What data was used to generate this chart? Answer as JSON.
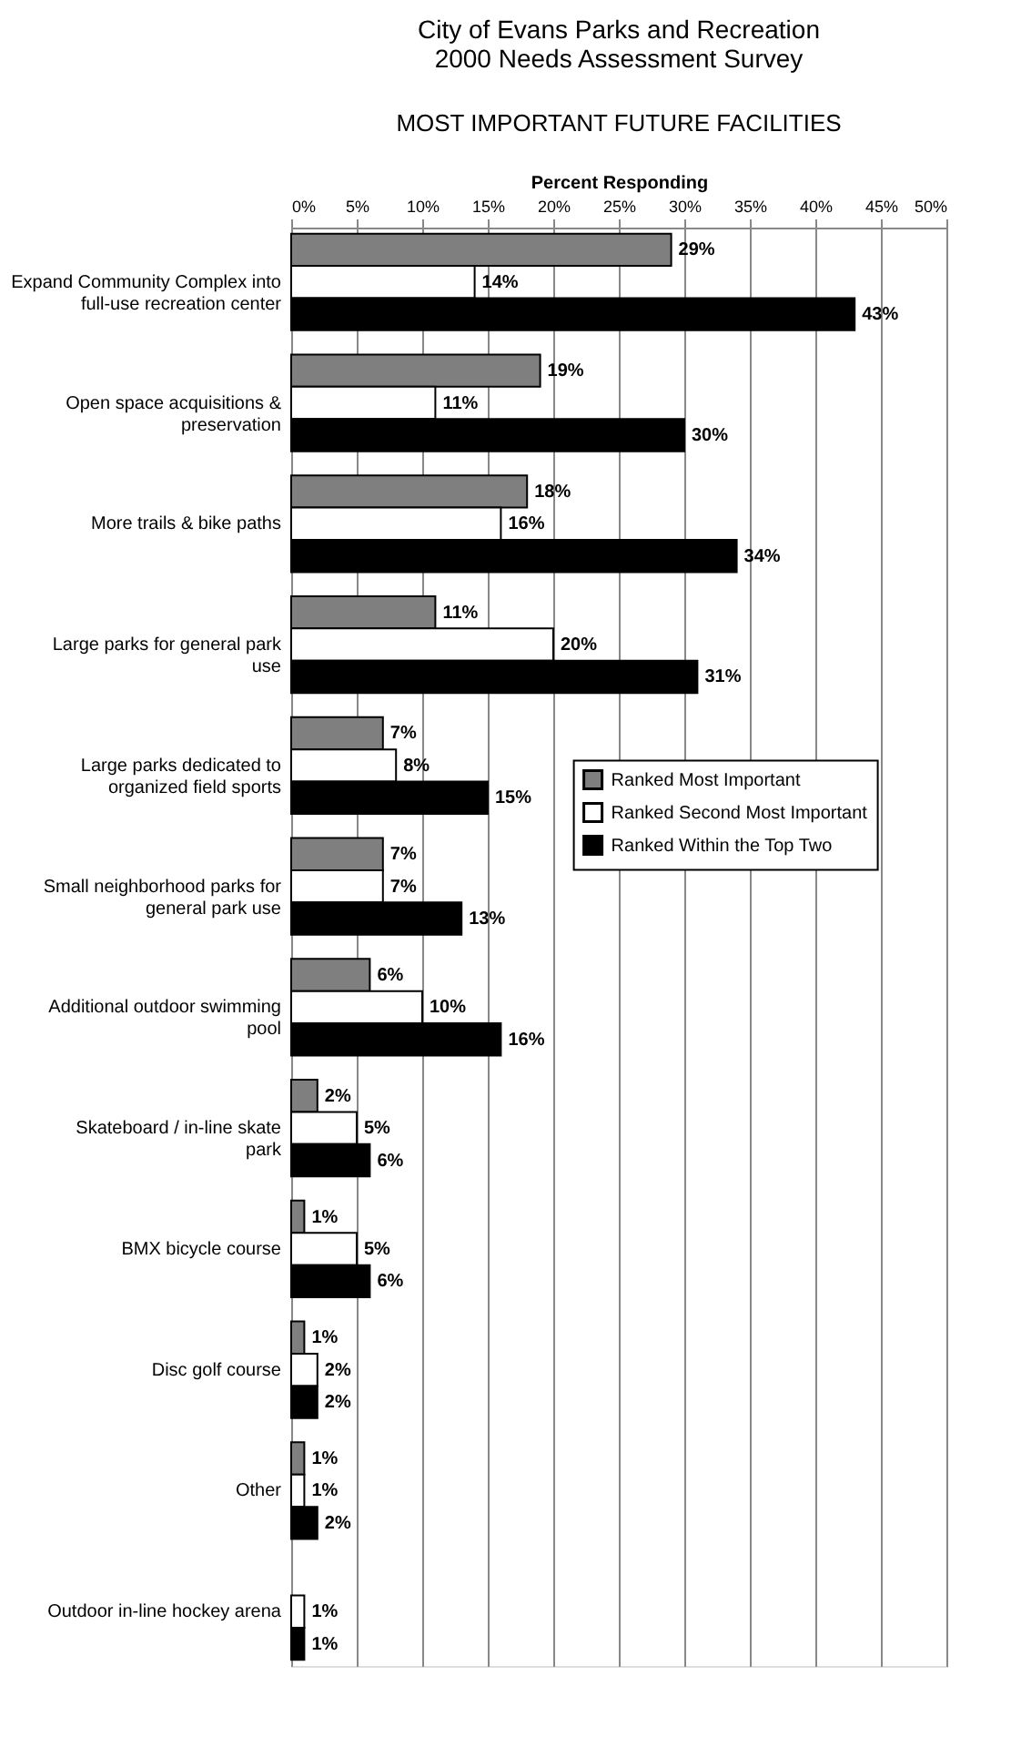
{
  "chart_data": {
    "type": "bar",
    "orientation": "horizontal",
    "title": [
      "City of Evans Parks and Recreation",
      "2000 Needs Assessment Survey"
    ],
    "subtitle": "MOST IMPORTANT FUTURE FACILITIES",
    "xlabel": "Percent Responding",
    "categories": [
      "Expand Community Complex into full-use recreation center",
      "Open space acquisitions & preservation",
      "More trails & bike paths",
      "Large parks for general park use",
      "Large parks dedicated to organized field sports",
      "Small neighborhood parks for general park use",
      "Additional outdoor swimming pool",
      "Skateboard / in-line skate park",
      "BMX bicycle course",
      "Disc golf course",
      "Other",
      "Outdoor in-line hockey arena"
    ],
    "series": [
      {
        "name": "Ranked Most Important",
        "color": "#7f7f7f",
        "values": [
          29,
          19,
          18,
          11,
          7,
          7,
          6,
          2,
          1,
          1,
          1,
          null
        ],
        "value_labels": [
          "29%",
          "19%",
          "18%",
          "11%",
          "7%",
          "7%",
          "6%",
          "2%",
          "1%",
          "1%",
          "1%",
          null
        ]
      },
      {
        "name": "Ranked Second Most Important",
        "color": "#ffffff",
        "values": [
          14,
          11,
          16,
          20,
          8,
          7,
          10,
          5,
          5,
          2,
          1,
          1
        ],
        "value_labels": [
          "14%",
          "11%",
          "16%",
          "20%",
          "8%",
          "7%",
          "10%",
          "5%",
          "5%",
          "2%",
          "1%",
          "1%"
        ]
      },
      {
        "name": "Ranked Within the Top Two",
        "color": "#000000",
        "values": [
          43,
          30,
          34,
          31,
          15,
          13,
          16,
          6,
          6,
          2,
          2,
          1
        ],
        "value_labels": [
          "43%",
          "30%",
          "34%",
          "31%",
          "15%",
          "13%",
          "16%",
          "6%",
          "6%",
          "2%",
          "2%",
          "1%"
        ]
      }
    ],
    "xlim": [
      0,
      50
    ],
    "xticks": [
      {
        "value": 0,
        "label": "0%"
      },
      {
        "value": 5,
        "label": "5%"
      },
      {
        "value": 10,
        "label": "10%"
      },
      {
        "value": 15,
        "label": "15%"
      },
      {
        "value": 20,
        "label": "20%"
      },
      {
        "value": 25,
        "label": "25%"
      },
      {
        "value": 30,
        "label": "30%"
      },
      {
        "value": 35,
        "label": "35%"
      },
      {
        "value": 40,
        "label": "40%"
      },
      {
        "value": 45,
        "label": "45%"
      },
      {
        "value": 50,
        "label": "50%"
      }
    ],
    "grid": "x",
    "legend": "right"
  }
}
